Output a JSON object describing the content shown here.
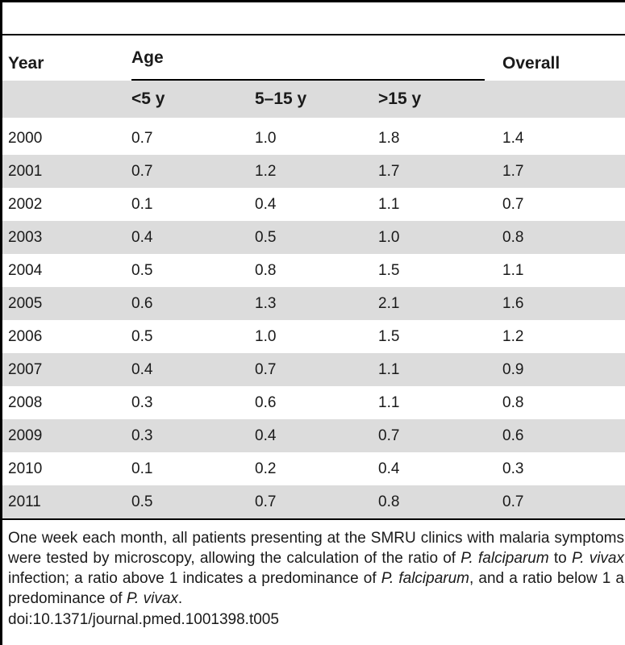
{
  "table": {
    "headers": {
      "year": "Year",
      "age": "Age",
      "overall": "Overall",
      "age_groups": [
        "<5 y",
        "5–15 y",
        ">15 y"
      ]
    },
    "rows": [
      {
        "year": "2000",
        "lt5": "0.7",
        "mid": "1.0",
        "gt15": "1.8",
        "overall": "1.4"
      },
      {
        "year": "2001",
        "lt5": "0.7",
        "mid": "1.2",
        "gt15": "1.7",
        "overall": "1.7"
      },
      {
        "year": "2002",
        "lt5": "0.1",
        "mid": "0.4",
        "gt15": "1.1",
        "overall": "0.7"
      },
      {
        "year": "2003",
        "lt5": "0.4",
        "mid": "0.5",
        "gt15": "1.0",
        "overall": "0.8"
      },
      {
        "year": "2004",
        "lt5": "0.5",
        "mid": "0.8",
        "gt15": "1.5",
        "overall": "1.1"
      },
      {
        "year": "2005",
        "lt5": "0.6",
        "mid": "1.3",
        "gt15": "2.1",
        "overall": "1.6"
      },
      {
        "year": "2006",
        "lt5": "0.5",
        "mid": "1.0",
        "gt15": "1.5",
        "overall": "1.2"
      },
      {
        "year": "2007",
        "lt5": "0.4",
        "mid": "0.7",
        "gt15": "1.1",
        "overall": "0.9"
      },
      {
        "year": "2008",
        "lt5": "0.3",
        "mid": "0.6",
        "gt15": "1.1",
        "overall": "0.8"
      },
      {
        "year": "2009",
        "lt5": "0.3",
        "mid": "0.4",
        "gt15": "0.7",
        "overall": "0.6"
      },
      {
        "year": "2010",
        "lt5": "0.1",
        "mid": "0.2",
        "gt15": "0.4",
        "overall": "0.3"
      },
      {
        "year": "2011",
        "lt5": "0.5",
        "mid": "0.7",
        "gt15": "0.8",
        "overall": "0.7"
      }
    ]
  },
  "footnote": {
    "p1": "One week each month, all patients presenting at the SMRU clinics with malaria symptoms were tested by microscopy, allowing the calculation of the ratio of ",
    "i1": "P. falciparum",
    "p2": " to ",
    "i2": "P. vivax",
    "p3": " infection; a ratio above 1 indicates a predominance of ",
    "i3": "P. falciparum",
    "p4": ", and a ratio below 1 a predominance of ",
    "i4": "P. vivax",
    "p5": ".",
    "doi": "doi:10.1371/journal.pmed.1001398.t005"
  },
  "colors": {
    "shade": "#dcdcdc",
    "rule": "#000000",
    "text": "#1a1a1a"
  }
}
